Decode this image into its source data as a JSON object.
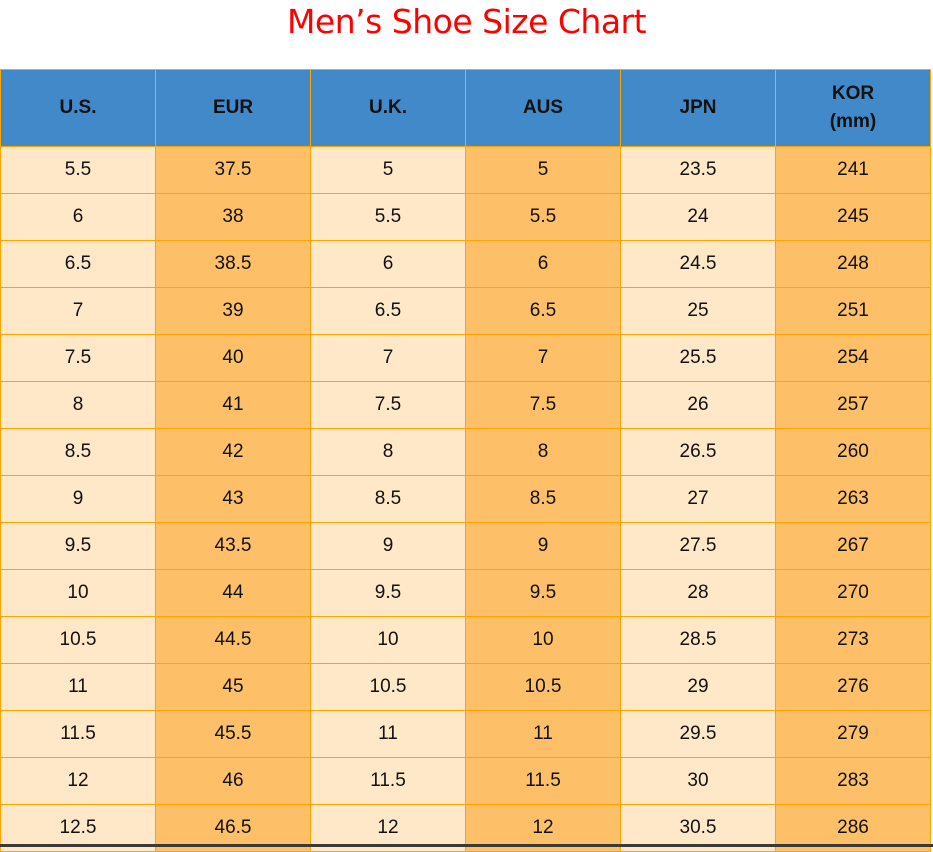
{
  "title": "Men’s Shoe Size Chart",
  "colors": {
    "title": "#ff0000",
    "header_bg": "#4189c8",
    "cell_light": "#ffe8c8",
    "cell_dark": "#fdc068",
    "border": "#ffa500"
  },
  "headers": [
    {
      "line1": "U.S.",
      "line2": ""
    },
    {
      "line1": "EUR",
      "line2": ""
    },
    {
      "line1": "U.K.",
      "line2": ""
    },
    {
      "line1": "AUS",
      "line2": ""
    },
    {
      "line1": "JPN",
      "line2": ""
    },
    {
      "line1": "KOR",
      "line2": "(mm)"
    }
  ],
  "rows": [
    [
      "5.5",
      "37.5",
      "5",
      "5",
      "23.5",
      "241"
    ],
    [
      "6",
      "38",
      "5.5",
      "5.5",
      "24",
      "245"
    ],
    [
      "6.5",
      "38.5",
      "6",
      "6",
      "24.5",
      "248"
    ],
    [
      "7",
      "39",
      "6.5",
      "6.5",
      "25",
      "251"
    ],
    [
      "7.5",
      "40",
      "7",
      "7",
      "25.5",
      "254"
    ],
    [
      "8",
      "41",
      "7.5",
      "7.5",
      "26",
      "257"
    ],
    [
      "8.5",
      "42",
      "8",
      "8",
      "26.5",
      "260"
    ],
    [
      "9",
      "43",
      "8.5",
      "8.5",
      "27",
      "263"
    ],
    [
      "9.5",
      "43.5",
      "9",
      "9",
      "27.5",
      "267"
    ],
    [
      "10",
      "44",
      "9.5",
      "9.5",
      "28",
      "270"
    ],
    [
      "10.5",
      "44.5",
      "10",
      "10",
      "28.5",
      "273"
    ],
    [
      "11",
      "45",
      "10.5",
      "10.5",
      "29",
      "276"
    ],
    [
      "11.5",
      "45.5",
      "11",
      "11",
      "29.5",
      "279"
    ],
    [
      "12",
      "46",
      "11.5",
      "11.5",
      "30",
      "283"
    ],
    [
      "12.5",
      "46.5",
      "12",
      "12",
      "30.5",
      "286"
    ]
  ]
}
